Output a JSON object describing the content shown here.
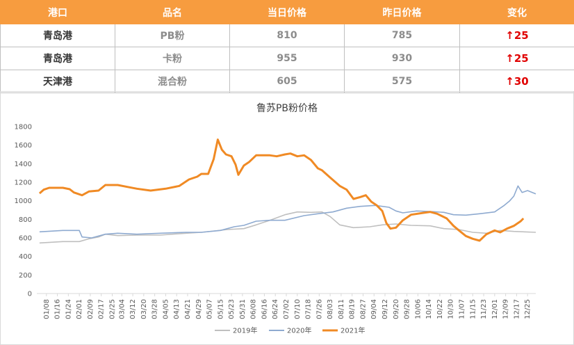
{
  "table": {
    "headers": [
      "港口",
      "品名",
      "当日价格",
      "昨日价格",
      "变化"
    ],
    "rows": [
      {
        "port": "青岛港",
        "product": "PB粉",
        "today": "810",
        "yesterday": "785",
        "arrow": "↑",
        "change": "25"
      },
      {
        "port": "青岛港",
        "product": "卡粉",
        "today": "955",
        "yesterday": "930",
        "arrow": "↑",
        "change": "25"
      },
      {
        "port": "天津港",
        "product": "混合粉",
        "today": "605",
        "yesterday": "575",
        "arrow": "↑",
        "change": "30"
      }
    ]
  },
  "chart_data": {
    "type": "line",
    "title": "鲁苏PB粉价格",
    "ylim": [
      0,
      1800
    ],
    "yticks": [
      0,
      200,
      400,
      600,
      800,
      1000,
      1200,
      1400,
      1600,
      1800
    ],
    "xlim": [
      "01/01",
      "12/31"
    ],
    "xticks": [
      "01/08",
      "01/16",
      "01/24",
      "02/01",
      "02/09",
      "02/17",
      "02/25",
      "03/04",
      "03/12",
      "03/20",
      "03/28",
      "04/05",
      "04/13",
      "04/21",
      "04/29",
      "05/07",
      "05/15",
      "05/23",
      "05/31",
      "06/08",
      "06/16",
      "06/24",
      "07/02",
      "07/10",
      "07/18",
      "07/26",
      "08/03",
      "08/11",
      "08/19",
      "08/27",
      "09/04",
      "09/12",
      "09/20",
      "09/28",
      "10/06",
      "10/14",
      "10/22",
      "10/30",
      "11/07",
      "11/15",
      "11/23",
      "12/01",
      "12/09",
      "12/17",
      "12/25"
    ],
    "grid": false,
    "legend_position": "bottom",
    "series": [
      {
        "name": "2019年",
        "color": "#bfbfbf",
        "points": [
          [
            "01/03",
            545
          ],
          [
            "01/20",
            560
          ],
          [
            "02/01",
            560
          ],
          [
            "02/08",
            590
          ],
          [
            "02/15",
            610
          ],
          [
            "02/20",
            640
          ],
          [
            "03/01",
            625
          ],
          [
            "03/15",
            630
          ],
          [
            "04/01",
            630
          ],
          [
            "04/20",
            650
          ],
          [
            "05/01",
            660
          ],
          [
            "05/20",
            690
          ],
          [
            "06/01",
            700
          ],
          [
            "06/10",
            740
          ],
          [
            "06/20",
            790
          ],
          [
            "07/01",
            850
          ],
          [
            "07/10",
            880
          ],
          [
            "07/20",
            875
          ],
          [
            "07/28",
            880
          ],
          [
            "08/03",
            830
          ],
          [
            "08/10",
            740
          ],
          [
            "08/20",
            710
          ],
          [
            "09/01",
            720
          ],
          [
            "09/10",
            740
          ],
          [
            "09/20",
            750
          ],
          [
            "10/01",
            735
          ],
          [
            "10/15",
            730
          ],
          [
            "10/25",
            700
          ],
          [
            "11/05",
            690
          ],
          [
            "11/15",
            660
          ],
          [
            "11/25",
            650
          ],
          [
            "12/05",
            680
          ],
          [
            "12/15",
            670
          ],
          [
            "12/31",
            660
          ]
        ]
      },
      {
        "name": "2020年",
        "color": "#8eaad0",
        "points": [
          [
            "01/03",
            665
          ],
          [
            "01/20",
            680
          ],
          [
            "02/01",
            680
          ],
          [
            "02/03",
            610
          ],
          [
            "02/10",
            600
          ],
          [
            "02/20",
            640
          ],
          [
            "03/01",
            650
          ],
          [
            "03/15",
            640
          ],
          [
            "04/01",
            650
          ],
          [
            "04/20",
            660
          ],
          [
            "05/01",
            660
          ],
          [
            "05/15",
            680
          ],
          [
            "05/25",
            720
          ],
          [
            "06/01",
            735
          ],
          [
            "06/10",
            780
          ],
          [
            "06/20",
            790
          ],
          [
            "07/01",
            790
          ],
          [
            "07/15",
            840
          ],
          [
            "07/25",
            860
          ],
          [
            "08/05",
            880
          ],
          [
            "08/15",
            920
          ],
          [
            "08/25",
            940
          ],
          [
            "09/05",
            950
          ],
          [
            "09/15",
            930
          ],
          [
            "09/20",
            890
          ],
          [
            "09/25",
            870
          ],
          [
            "10/05",
            890
          ],
          [
            "10/15",
            885
          ],
          [
            "10/25",
            875
          ],
          [
            "11/01",
            850
          ],
          [
            "11/10",
            845
          ],
          [
            "11/20",
            860
          ],
          [
            "12/01",
            880
          ],
          [
            "12/08",
            950
          ],
          [
            "12/12",
            1000
          ],
          [
            "12/15",
            1050
          ],
          [
            "12/18",
            1160
          ],
          [
            "12/21",
            1090
          ],
          [
            "12/25",
            1110
          ],
          [
            "12/31",
            1075
          ]
        ]
      },
      {
        "name": "2021年",
        "color": "#f08a24",
        "points": [
          [
            "01/03",
            1080
          ],
          [
            "01/06",
            1120
          ],
          [
            "01/10",
            1140
          ],
          [
            "01/20",
            1140
          ],
          [
            "01/25",
            1125
          ],
          [
            "01/28",
            1090
          ],
          [
            "02/03",
            1060
          ],
          [
            "02/08",
            1100
          ],
          [
            "02/15",
            1110
          ],
          [
            "02/20",
            1170
          ],
          [
            "03/01",
            1170
          ],
          [
            "03/08",
            1150
          ],
          [
            "03/15",
            1130
          ],
          [
            "03/25",
            1110
          ],
          [
            "04/05",
            1130
          ],
          [
            "04/15",
            1160
          ],
          [
            "04/22",
            1230
          ],
          [
            "04/28",
            1260
          ],
          [
            "05/01",
            1290
          ],
          [
            "05/06",
            1290
          ],
          [
            "05/10",
            1450
          ],
          [
            "05/13",
            1660
          ],
          [
            "05/16",
            1550
          ],
          [
            "05/19",
            1500
          ],
          [
            "05/23",
            1480
          ],
          [
            "05/26",
            1390
          ],
          [
            "05/28",
            1280
          ],
          [
            "06/01",
            1380
          ],
          [
            "06/05",
            1420
          ],
          [
            "06/10",
            1490
          ],
          [
            "06/20",
            1490
          ],
          [
            "06/25",
            1480
          ],
          [
            "07/01",
            1500
          ],
          [
            "07/05",
            1510
          ],
          [
            "07/10",
            1480
          ],
          [
            "07/15",
            1490
          ],
          [
            "07/20",
            1440
          ],
          [
            "07/25",
            1350
          ],
          [
            "07/28",
            1330
          ],
          [
            "08/03",
            1250
          ],
          [
            "08/10",
            1160
          ],
          [
            "08/15",
            1120
          ],
          [
            "08/20",
            1020
          ],
          [
            "08/25",
            1040
          ],
          [
            "08/29",
            1060
          ],
          [
            "09/02",
            990
          ],
          [
            "09/06",
            950
          ],
          [
            "09/10",
            890
          ],
          [
            "09/13",
            760
          ],
          [
            "09/16",
            700
          ],
          [
            "09/20",
            710
          ],
          [
            "09/25",
            790
          ],
          [
            "10/01",
            850
          ],
          [
            "10/10",
            870
          ],
          [
            "10/15",
            880
          ],
          [
            "10/20",
            860
          ],
          [
            "10/27",
            810
          ],
          [
            "11/01",
            730
          ],
          [
            "11/05",
            680
          ],
          [
            "11/10",
            620
          ],
          [
            "11/15",
            590
          ],
          [
            "11/20",
            570
          ],
          [
            "11/25",
            640
          ],
          [
            "12/01",
            680
          ],
          [
            "12/05",
            660
          ],
          [
            "12/10",
            700
          ],
          [
            "12/15",
            730
          ],
          [
            "12/20",
            780
          ],
          [
            "12/22",
            810
          ]
        ]
      }
    ]
  }
}
